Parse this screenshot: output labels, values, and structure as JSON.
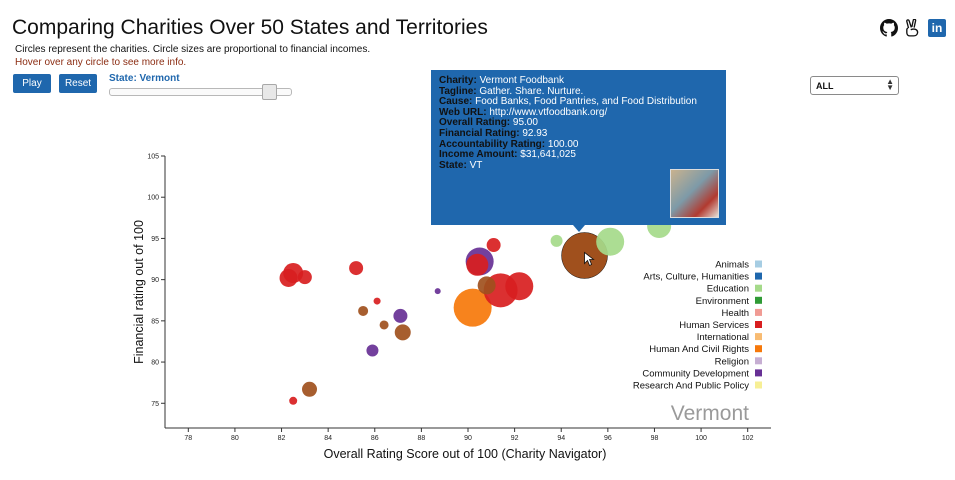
{
  "header": {
    "title": "Comparing Charities Over 50 States and Territories",
    "subtitle": "Circles represent the charities. Circle sizes are proportional to financial incomes.",
    "hint": "Hover over any circle to see more info."
  },
  "controls": {
    "play_label": "Play",
    "reset_label": "Reset",
    "state_label": "State: Vermont",
    "slider_value": 0.88,
    "filter_value": "ALL"
  },
  "icons": [
    "github-icon",
    "victory-hand-icon",
    "linkedin-icon"
  ],
  "linkedin_text": "in",
  "tooltip": {
    "rows": [
      {
        "key": "Charity:",
        "value": "Vermont Foodbank"
      },
      {
        "key": "Tagline:",
        "value": "Gather. Share. Nurture."
      },
      {
        "key": "Cause:",
        "value": "Food Banks, Food Pantries, and Food Distribution"
      },
      {
        "key": "Web URL:",
        "value": "http://www.vtfoodbank.org/"
      },
      {
        "key": "Overall Rating:",
        "value": "95.00"
      },
      {
        "key": "Financial Rating:",
        "value": "92.93"
      },
      {
        "key": "Accountability Rating:",
        "value": "100.00"
      },
      {
        "key": "Income Amount:",
        "value": "$31,641,025"
      },
      {
        "key": "State:",
        "value": "VT"
      }
    ]
  },
  "chart_data": {
    "type": "scatter",
    "xlabel": "Overall Rating Score out of 100 (Charity Navigator)",
    "ylabel": "Financial rating out of 100",
    "xlim": [
      77,
      103
    ],
    "ylim": [
      72,
      105
    ],
    "x_ticks": [
      78,
      80,
      82,
      84,
      86,
      88,
      90,
      92,
      94,
      96,
      98,
      100,
      102
    ],
    "y_ticks": [
      75,
      80,
      85,
      90,
      95,
      100,
      105
    ],
    "watermark": "Vermont",
    "legend": [
      {
        "name": "Animals",
        "color": "#a6cde3"
      },
      {
        "name": "Arts, Culture, Humanities",
        "color": "#1f67ad"
      },
      {
        "name": "Education",
        "color": "#a5da8a"
      },
      {
        "name": "Environment",
        "color": "#2f9a35"
      },
      {
        "name": "Health",
        "color": "#f09b94"
      },
      {
        "name": "Human Services",
        "color": "#d81e20"
      },
      {
        "name": "International",
        "color": "#f8bb72"
      },
      {
        "name": "Human And Civil Rights",
        "color": "#f6780a"
      },
      {
        "name": "Religion",
        "color": "#c6aed2"
      },
      {
        "name": "Community Development",
        "color": "#673095"
      },
      {
        "name": "Research And Public Policy",
        "color": "#f7ef95"
      }
    ],
    "points": [
      {
        "x": 82.3,
        "y": 90.2,
        "r": 9,
        "cat": "Human Services"
      },
      {
        "x": 82.5,
        "y": 90.8,
        "r": 10,
        "cat": "Human Services"
      },
      {
        "x": 83.0,
        "y": 90.3,
        "r": 7,
        "cat": "Human Services"
      },
      {
        "x": 85.2,
        "y": 91.4,
        "r": 7,
        "cat": "Human Services"
      },
      {
        "x": 85.5,
        "y": 86.2,
        "r": 5,
        "cat": "Environment-brown"
      },
      {
        "x": 86.1,
        "y": 87.4,
        "r": 3.5,
        "cat": "Human Services"
      },
      {
        "x": 86.4,
        "y": 84.5,
        "r": 4.5,
        "cat": "Environment-brown"
      },
      {
        "x": 87.1,
        "y": 85.6,
        "r": 7,
        "cat": "Community Development"
      },
      {
        "x": 87.2,
        "y": 83.6,
        "r": 8,
        "cat": "Environment-brown"
      },
      {
        "x": 85.9,
        "y": 81.4,
        "r": 6,
        "cat": "Community Development"
      },
      {
        "x": 88.7,
        "y": 88.6,
        "r": 3,
        "cat": "Community Development"
      },
      {
        "x": 82.5,
        "y": 75.3,
        "r": 4,
        "cat": "Human Services"
      },
      {
        "x": 83.2,
        "y": 76.7,
        "r": 7.5,
        "cat": "Environment-brown"
      },
      {
        "x": 90.2,
        "y": 86.6,
        "r": 19,
        "cat": "Human And Civil Rights"
      },
      {
        "x": 90.5,
        "y": 92.2,
        "r": 14,
        "cat": "Community Development"
      },
      {
        "x": 90.4,
        "y": 91.8,
        "r": 11,
        "cat": "Human Services"
      },
      {
        "x": 91.4,
        "y": 88.7,
        "r": 17,
        "cat": "Human Services"
      },
      {
        "x": 92.2,
        "y": 89.2,
        "r": 14,
        "cat": "Human Services"
      },
      {
        "x": 90.8,
        "y": 89.3,
        "r": 9,
        "cat": "Environment-brown"
      },
      {
        "x": 91.1,
        "y": 94.2,
        "r": 7,
        "cat": "Human Services"
      },
      {
        "x": 93.8,
        "y": 94.7,
        "r": 6,
        "cat": "Education"
      },
      {
        "x": 96.1,
        "y": 94.6,
        "r": 14,
        "cat": "Education"
      },
      {
        "x": 98.2,
        "y": 96.5,
        "r": 12,
        "cat": "Education"
      },
      {
        "x": 95.0,
        "y": 92.93,
        "r": 23,
        "cat": "Environment-brown",
        "highlight": true
      }
    ],
    "brown_color": "#a0501d"
  }
}
